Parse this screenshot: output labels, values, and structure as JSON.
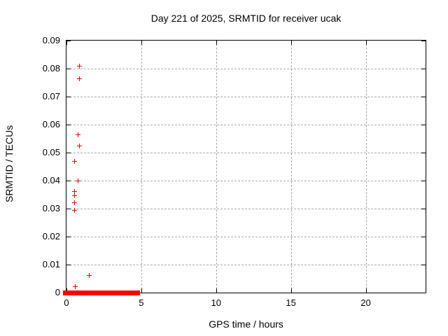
{
  "chart_data": {
    "type": "scatter",
    "title": "Day 221 of 2025, SRMTID for receiver ucak",
    "xlabel": "GPS time / hours",
    "ylabel": "SRMTID / TECUs",
    "xlim": [
      0,
      24
    ],
    "ylim": [
      0,
      0.09
    ],
    "x_ticks": [
      0,
      5,
      10,
      15,
      20
    ],
    "x_tick_labels": [
      "0",
      "5",
      "10",
      "15",
      "20"
    ],
    "y_ticks": [
      0,
      0.01,
      0.02,
      0.03,
      0.04,
      0.05,
      0.06,
      0.07,
      0.08,
      0.09
    ],
    "y_tick_labels": [
      "0",
      "0.01",
      "0.02",
      "0.03",
      "0.04",
      "0.05",
      "0.06",
      "0.07",
      "0.08",
      "0.09"
    ],
    "grid": true,
    "grid_x_values": [
      5,
      10,
      15,
      20
    ],
    "grid_y_values": [
      0.01,
      0.02,
      0.03,
      0.04,
      0.05,
      0.06,
      0.07,
      0.08
    ],
    "legend": "none",
    "marker": "plus",
    "marker_color": "#ff0000",
    "series": [
      {
        "name": "SRMTID",
        "points": [
          [
            0.85,
            0.081
          ],
          [
            0.85,
            0.0765
          ],
          [
            0.79,
            0.0563
          ],
          [
            0.87,
            0.0523
          ],
          [
            0.53,
            0.0468
          ],
          [
            0.79,
            0.04
          ],
          [
            0.56,
            0.0362
          ],
          [
            0.56,
            0.0347
          ],
          [
            0.56,
            0.0322
          ],
          [
            0.56,
            0.0293
          ],
          [
            1.5,
            0.0061
          ],
          [
            0.6,
            0.0022
          ]
        ]
      }
    ],
    "zero_band": {
      "x_start": 0,
      "x_end": 4.7,
      "y": 0
    }
  },
  "colors": {
    "background": "#ffffff",
    "border": "#000000",
    "grid": "#a8a8a8",
    "marker": "#ff0000",
    "text": "#000000"
  }
}
